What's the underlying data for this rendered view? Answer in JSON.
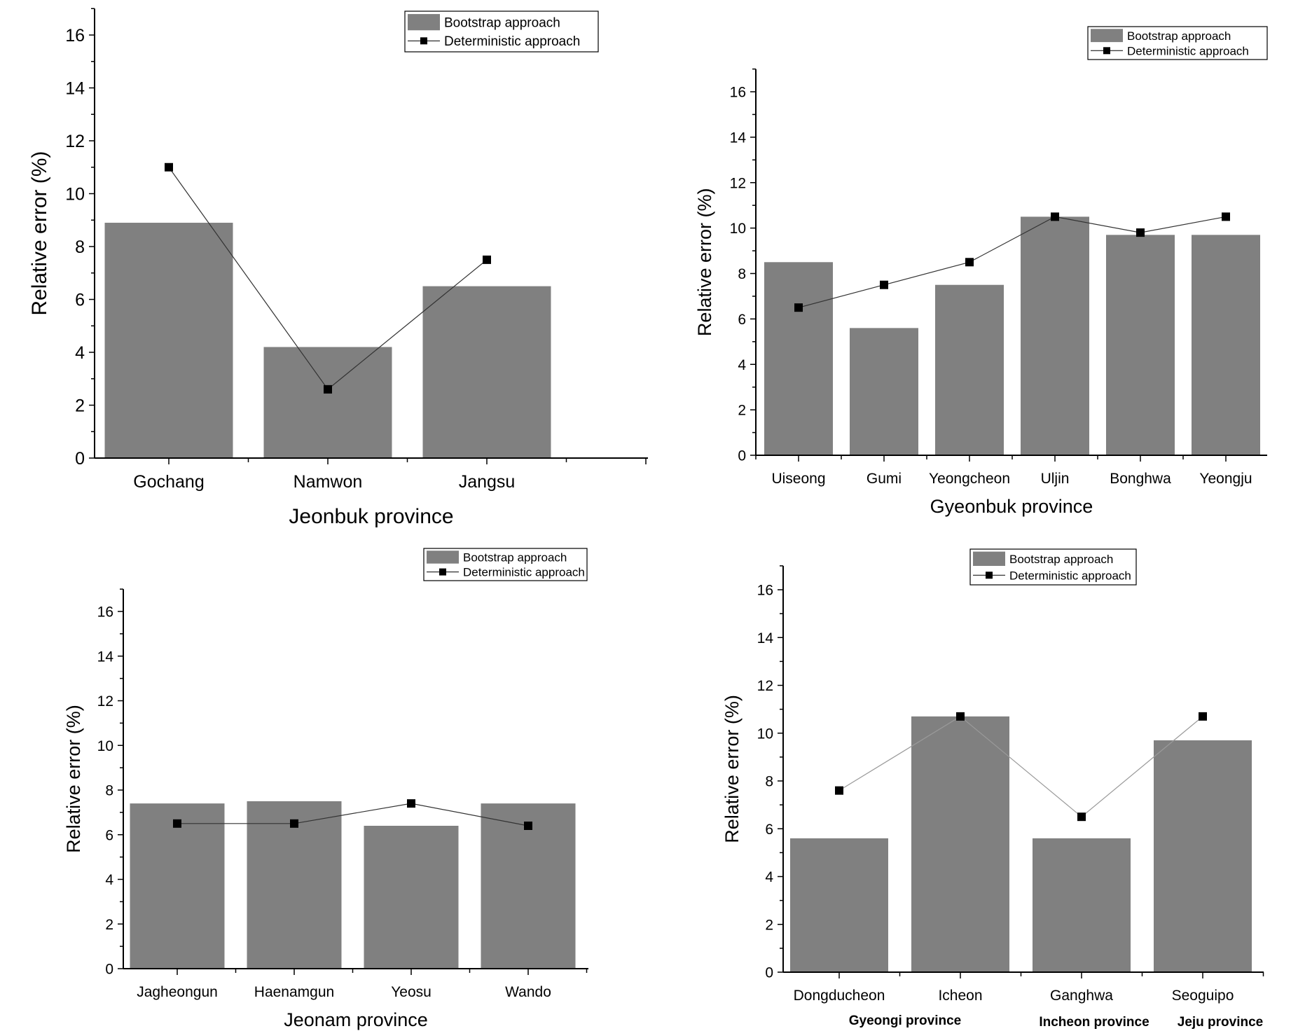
{
  "colors": {
    "bar": "#808080",
    "marker": "#000000",
    "axis": "#000000",
    "line_dark": "#333333",
    "line_light": "#9a9a9a"
  },
  "chart_data": [
    {
      "type": "bar",
      "title": "",
      "xlabel": "Jeonbuk province",
      "ylabel": "Relative error (%)",
      "ylim": [
        0,
        17
      ],
      "yticks": [
        0,
        2,
        4,
        6,
        8,
        10,
        12,
        14,
        16
      ],
      "categories": [
        "Gochang",
        "Namwon",
        "Jangsu"
      ],
      "series": [
        {
          "name": "Bootstrap approach",
          "kind": "bar",
          "values": [
            8.9,
            4.2,
            6.5
          ]
        },
        {
          "name": "Deterministic approach",
          "kind": "line",
          "values": [
            11.0,
            2.6,
            7.5
          ]
        }
      ],
      "group_labels": [],
      "legend": "top-right"
    },
    {
      "type": "bar",
      "title": "",
      "xlabel": "Gyeonbuk province",
      "ylabel": "Relative error (%)",
      "ylim": [
        0,
        17
      ],
      "yticks": [
        0,
        2,
        4,
        6,
        8,
        10,
        12,
        14,
        16
      ],
      "categories": [
        "Uiseong",
        "Gumi",
        "Yeongcheon",
        "Uljin",
        "Bonghwa",
        "Yeongju"
      ],
      "series": [
        {
          "name": "Bootstrap approach",
          "kind": "bar",
          "values": [
            8.5,
            5.6,
            7.5,
            10.5,
            9.7,
            9.7
          ]
        },
        {
          "name": "Deterministic approach",
          "kind": "line",
          "values": [
            6.5,
            7.5,
            8.5,
            10.5,
            9.8,
            10.5
          ]
        }
      ],
      "group_labels": [],
      "legend": "top-right"
    },
    {
      "type": "bar",
      "title": "",
      "xlabel": "Jeonam province",
      "ylabel": "Relative error (%)",
      "ylim": [
        0,
        17
      ],
      "yticks": [
        0,
        2,
        4,
        6,
        8,
        10,
        12,
        14,
        16
      ],
      "categories": [
        "Jagheongun",
        "Haenamgun",
        "Yeosu",
        "Wando"
      ],
      "series": [
        {
          "name": "Bootstrap approach",
          "kind": "bar",
          "values": [
            7.4,
            7.5,
            6.4,
            7.4
          ]
        },
        {
          "name": "Deterministic approach",
          "kind": "line",
          "values": [
            6.5,
            6.5,
            7.4,
            6.4
          ]
        }
      ],
      "group_labels": [],
      "legend": "top-right"
    },
    {
      "type": "bar",
      "title": "",
      "xlabel": "",
      "ylabel": "Relative error (%)",
      "ylim": [
        0,
        17
      ],
      "yticks": [
        0,
        2,
        4,
        6,
        8,
        10,
        12,
        14,
        16
      ],
      "categories": [
        "Dongducheon",
        "Icheon",
        "Ganghwa",
        "Seoguipo"
      ],
      "series": [
        {
          "name": "Bootstrap approach",
          "kind": "bar",
          "values": [
            5.6,
            10.7,
            5.6,
            9.7
          ]
        },
        {
          "name": "Deterministic approach",
          "kind": "line",
          "values": [
            7.6,
            10.7,
            6.5,
            10.7
          ]
        }
      ],
      "group_labels": [
        "Gyeongi province",
        "Incheon province",
        "Jeju province"
      ],
      "legend": "top-center"
    }
  ]
}
